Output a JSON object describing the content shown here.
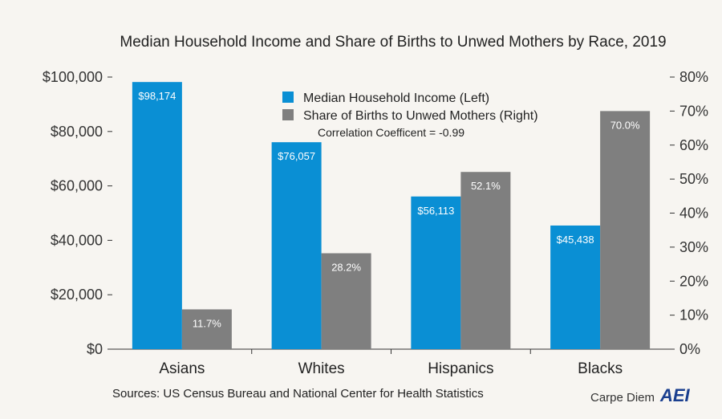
{
  "chart_data": {
    "type": "bar",
    "title": "Median Household Income and Share of Births to Unwed Mothers by Race, 2019",
    "categories": [
      "Asians",
      "Whites",
      "Hispanics",
      "Blacks"
    ],
    "series": [
      {
        "name": "Median Household Income (Left)",
        "axis": "left",
        "color": "#0a8fd4",
        "values": [
          98174,
          76057,
          56113,
          45438
        ],
        "labels": [
          "$98,174",
          "$76,057",
          "$56,113",
          "$45,438"
        ]
      },
      {
        "name": "Share of Births to Unwed Mothers (Right)",
        "axis": "right",
        "color": "#7f7f7f",
        "values": [
          11.7,
          28.2,
          52.1,
          70.0
        ],
        "labels": [
          "11.7%",
          "28.2%",
          "52.1%",
          "70.0%"
        ]
      }
    ],
    "ylim_left": [
      0,
      100000
    ],
    "ylim_right": [
      0,
      80
    ],
    "left_ticks": [
      "$0",
      "$20,000",
      "$40,000",
      "$60,000",
      "$80,000",
      "$100,000"
    ],
    "right_ticks": [
      "0%",
      "10%",
      "20%",
      "30%",
      "40%",
      "50%",
      "60%",
      "70%",
      "80%"
    ],
    "grid": false,
    "legend_position": "top-center",
    "annotation": "Correlation Coefficent = -0.99"
  },
  "footer": {
    "source": "Sources: US Census Bureau and National Center for Health Statistics",
    "brand": "Carpe Diem",
    "logo": "AEI"
  }
}
